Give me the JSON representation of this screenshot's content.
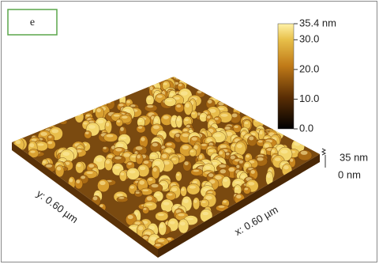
{
  "panel_label": "e",
  "colorbar": {
    "lim": [
      0,
      35.4
    ],
    "ticks": [
      {
        "value": 35.4,
        "label": "35.4 nm"
      },
      {
        "value": 30,
        "label": "30.0"
      },
      {
        "value": 20,
        "label": "20.0"
      },
      {
        "value": 10,
        "label": "10.0"
      },
      {
        "value": 0,
        "label": "0.0"
      }
    ]
  },
  "z_scale": {
    "top": "35 nm",
    "bottom": "0 nm"
  },
  "y_axis_label": "y: 0.60 µm",
  "x_axis_label": "x: 0.60 µm"
}
